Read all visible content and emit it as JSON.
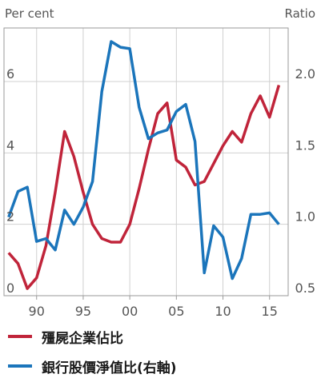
{
  "chart_data": {
    "type": "line",
    "left_axis": {
      "label": "Per cent",
      "ticks": [
        0,
        2,
        4,
        6
      ],
      "range": [
        0,
        7.5
      ]
    },
    "right_axis": {
      "label": "Ratio",
      "ticks": [
        "0.5",
        "1.0",
        "1.5",
        "2.0"
      ],
      "range": [
        0.5,
        2.375
      ]
    },
    "x_axis": {
      "ticks": [
        "90",
        "95",
        "00",
        "05",
        "10",
        "15"
      ],
      "tick_years": [
        1990,
        1995,
        2000,
        2005,
        2010,
        2015
      ],
      "range": [
        1986.5,
        2017
      ]
    },
    "grid": true,
    "legend_position": "bottom",
    "series": [
      {
        "name": "殭屍企業佔比",
        "axis": "left",
        "color": "#c0243a",
        "x": [
          1987,
          1988,
          1989,
          1990,
          1991,
          1992,
          1993,
          1994,
          1995,
          1996,
          1997,
          1998,
          1999,
          2000,
          2001,
          2002,
          2003,
          2004,
          2005,
          2006,
          2007,
          2008,
          2009,
          2010,
          2011,
          2012,
          2013,
          2014,
          2015,
          2016
        ],
        "y": [
          1.2,
          0.9,
          0.2,
          0.5,
          1.4,
          2.9,
          4.6,
          3.9,
          2.9,
          2.0,
          1.6,
          1.5,
          1.5,
          2.0,
          3.0,
          4.1,
          5.1,
          5.4,
          3.8,
          3.6,
          3.1,
          3.2,
          3.7,
          4.2,
          4.6,
          4.3,
          5.1,
          5.6,
          5.0,
          5.9
        ]
      },
      {
        "name": "銀行股價淨值比(右軸)",
        "axis": "right",
        "color": "#1b75bb",
        "x": [
          1987,
          1988,
          1989,
          1990,
          1991,
          1992,
          1993,
          1994,
          1995,
          1996,
          1997,
          1998,
          1999,
          2000,
          2001,
          2002,
          2003,
          2004,
          2005,
          2006,
          2007,
          2008,
          2009,
          2010,
          2011,
          2012,
          2013,
          2014,
          2015,
          2016
        ],
        "y": [
          1.05,
          1.23,
          1.26,
          0.88,
          0.9,
          0.82,
          1.1,
          1.0,
          1.12,
          1.3,
          1.93,
          2.28,
          2.24,
          2.23,
          1.82,
          1.6,
          1.64,
          1.66,
          1.79,
          1.84,
          1.58,
          0.66,
          0.99,
          0.91,
          0.62,
          0.76,
          1.07,
          1.07,
          1.08,
          1.0
        ]
      }
    ]
  }
}
